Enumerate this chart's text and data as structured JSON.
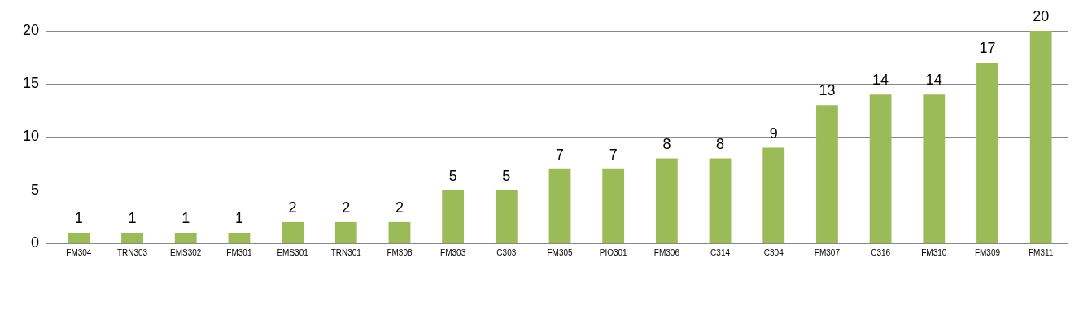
{
  "chart_data": {
    "type": "bar",
    "categories": [
      "FM304",
      "TRN303",
      "EMS302",
      "FM301",
      "EMS301",
      "TRN301",
      "FM308",
      "FM303",
      "C303",
      "FM305",
      "PIO301",
      "FM306",
      "C314",
      "C304",
      "FM307",
      "C316",
      "FM310",
      "FM309",
      "FM311"
    ],
    "values": [
      1,
      1,
      1,
      1,
      2,
      2,
      2,
      5,
      5,
      7,
      7,
      8,
      8,
      9,
      13,
      14,
      14,
      17,
      20
    ],
    "color": "#9bbb59",
    "ylim": [
      0,
      20
    ],
    "yticks": [
      0,
      5,
      10,
      15,
      20
    ],
    "grid": "y",
    "data_labels": true,
    "legend": false
  }
}
